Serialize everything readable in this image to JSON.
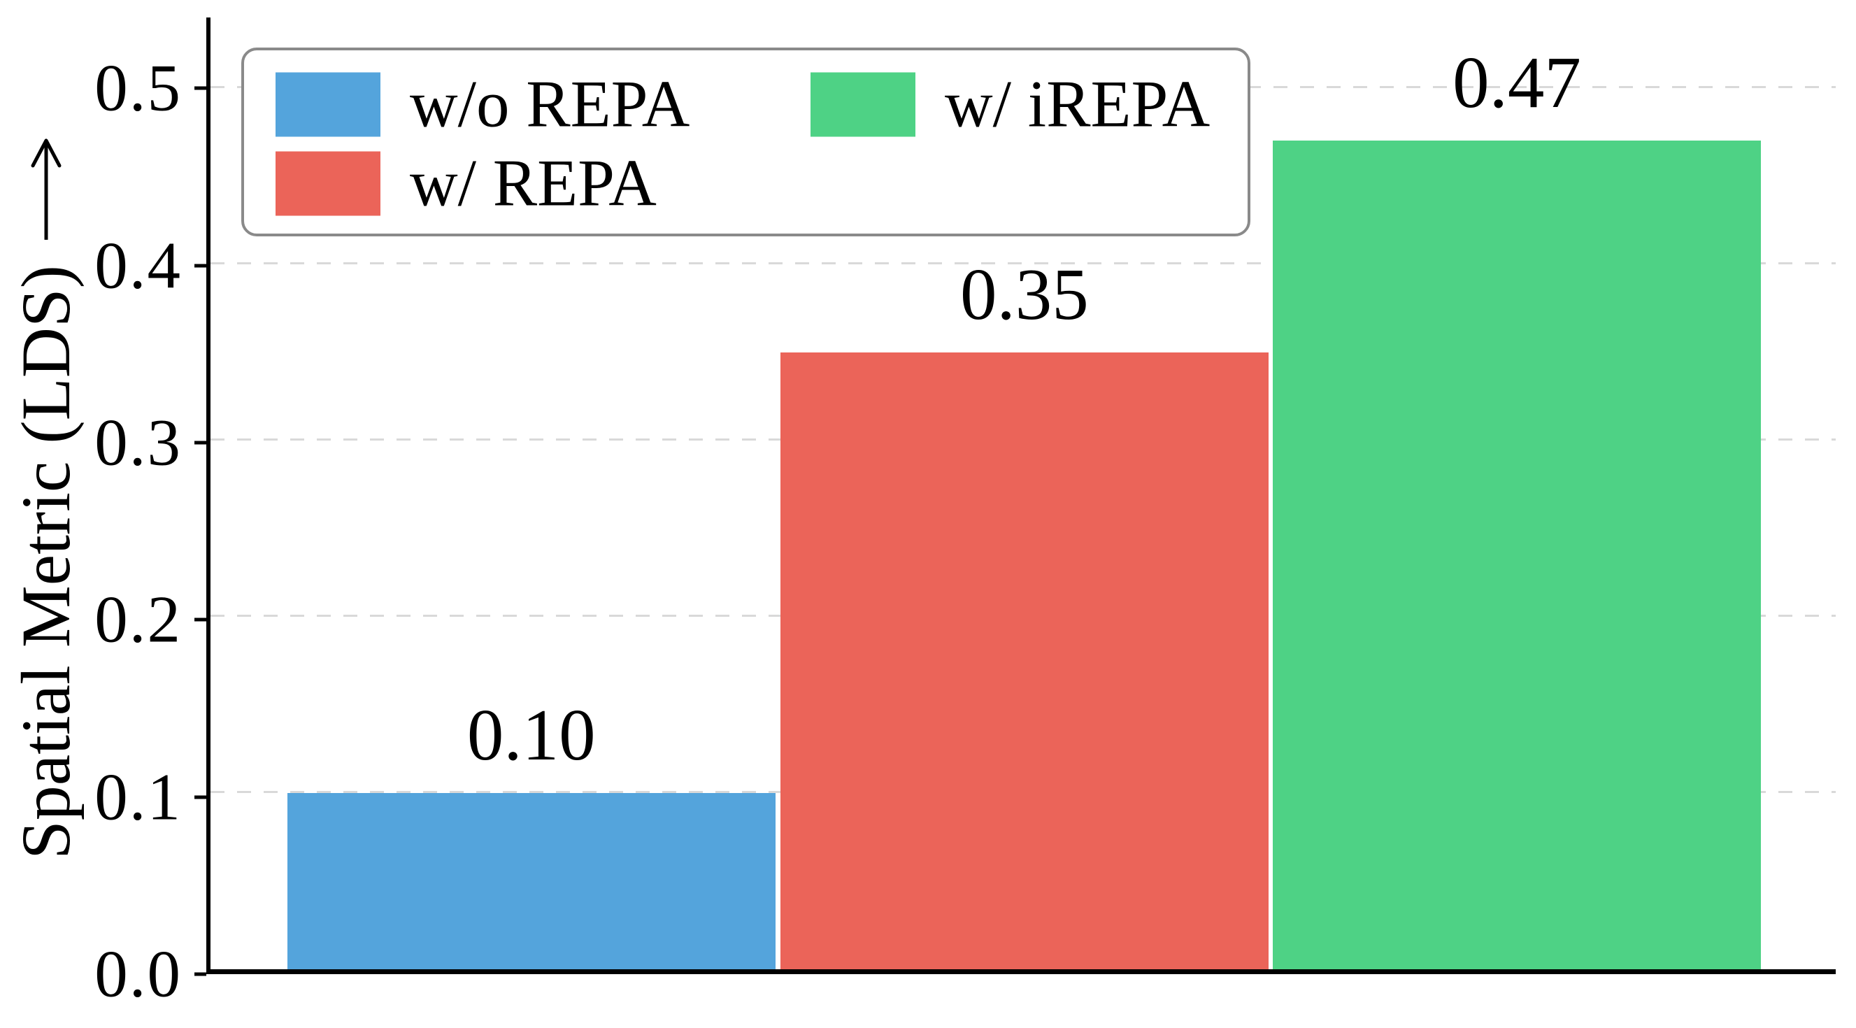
{
  "chart_data": {
    "type": "bar",
    "title": "",
    "xlabel": "",
    "ylabel": "Spatial Metric (LDS)",
    "ylabel_arrow": "up",
    "categories": [
      "w/o REPA",
      "w/ REPA",
      "w/ iREPA"
    ],
    "values": [
      0.1,
      0.35,
      0.47
    ],
    "bar_labels": [
      "0.10",
      "0.35",
      "0.47"
    ],
    "colors": [
      "#54A4DC",
      "#EB6459",
      "#4ED285"
    ],
    "ylim": [
      0,
      0.54
    ],
    "yticks": [
      0.0,
      0.1,
      0.2,
      0.3,
      0.4,
      0.5
    ],
    "ytick_labels": [
      "0.0",
      "0.1",
      "0.2",
      "0.3",
      "0.4",
      "0.5"
    ],
    "grid": "horizontal-dashed",
    "grid_color": "#d9d9d9",
    "axis_color": "#000000",
    "legend": {
      "position": "upper-left",
      "columns": 2,
      "border_color": "#8a8a8a",
      "entries": [
        {
          "label": "w/o REPA",
          "color": "#54A4DC"
        },
        {
          "label": "w/ REPA",
          "color": "#EB6459"
        },
        {
          "label": "w/ iREPA",
          "color": "#4ED285"
        }
      ]
    }
  }
}
